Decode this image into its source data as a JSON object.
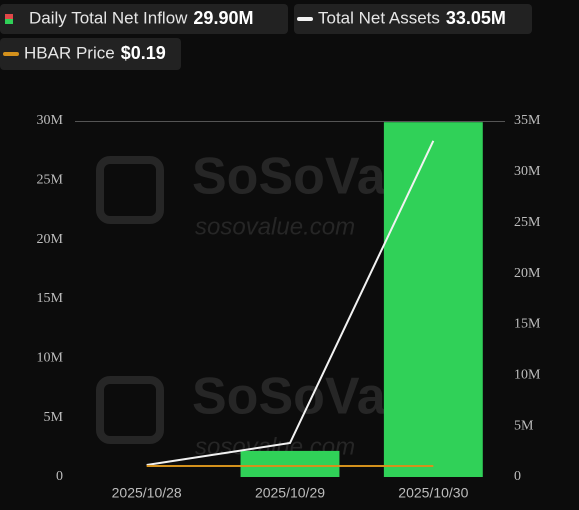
{
  "chart_data": {
    "type": "bar",
    "categories": [
      "2025/10/28",
      "2025/10/29",
      "2025/10/30"
    ],
    "series": [
      {
        "name": "Daily Total Net Inflow",
        "type": "bar",
        "color": "#30d158",
        "values": [
          0,
          2200000,
          29900000
        ],
        "value_labels": [
          null,
          null,
          "29.90M"
        ]
      },
      {
        "name": "Total Net Assets",
        "type": "line",
        "axis": "y2",
        "color": "#f2f2f2",
        "values": [
          1180000,
          3340000,
          33050000
        ],
        "value_labels": [
          null,
          null,
          "33.05M"
        ]
      },
      {
        "name": "HBAR Price",
        "type": "line",
        "axis": "y3",
        "color": "#d4911c",
        "values": [
          0.19,
          0.19,
          0.19
        ],
        "value_labels": [
          null,
          null,
          "$0.19"
        ]
      }
    ],
    "ylim": [
      0,
      30000000
    ],
    "yticks": [
      {
        "value": 0,
        "label": "0"
      },
      {
        "value": 5000000,
        "label": "5M"
      },
      {
        "value": 10000000,
        "label": "10M"
      },
      {
        "value": 15000000,
        "label": "15M"
      },
      {
        "value": 20000000,
        "label": "20M"
      },
      {
        "value": 25000000,
        "label": "25M"
      },
      {
        "value": 30000000,
        "label": "30M"
      }
    ],
    "y2lim": [
      0,
      35000000
    ],
    "y2ticks": [
      {
        "value": 0,
        "label": "0"
      },
      {
        "value": 5000000,
        "label": "5M"
      },
      {
        "value": 10000000,
        "label": "10M"
      },
      {
        "value": 15000000,
        "label": "15M"
      },
      {
        "value": 20000000,
        "label": "20M"
      },
      {
        "value": 25000000,
        "label": "25M"
      },
      {
        "value": 30000000,
        "label": "30M"
      },
      {
        "value": 35000000,
        "label": "35M"
      }
    ],
    "watermark": {
      "brand": "SoSoValue",
      "url": "sosovalue.com"
    }
  }
}
